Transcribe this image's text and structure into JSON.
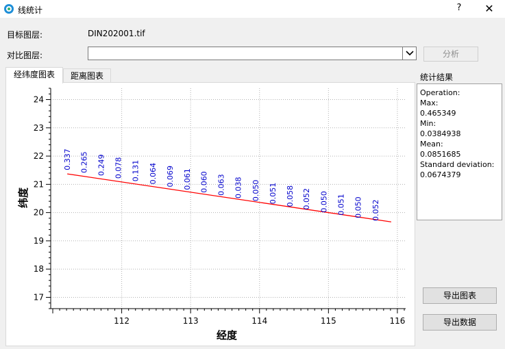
{
  "window": {
    "title": "线统计",
    "help": "?",
    "close": "✕"
  },
  "form": {
    "target_label": "目标图层:",
    "target_value": "DIN202001.tif",
    "compare_label": "对比图层:",
    "compare_value": "",
    "analyze_button": "分析"
  },
  "tabs": [
    {
      "label": "经纬度图表",
      "active": true
    },
    {
      "label": "距离图表",
      "active": false
    }
  ],
  "results": {
    "heading": "统计结果",
    "lines": [
      "Operation:",
      "Max:",
      "0.465349",
      "Min:",
      "0.0384938",
      "Mean:",
      "0.0851685",
      "Standard deviation:",
      "0.0674379"
    ]
  },
  "buttons": {
    "export_chart": "导出图表",
    "export_data": "导出数据"
  },
  "colors": {
    "line": "#ff0000",
    "label": "#0000cc",
    "grid": "#b0b0b0"
  },
  "chart_data": {
    "type": "line",
    "xlabel": "经度",
    "ylabel": "纬度",
    "xlim": [
      110.97,
      116.12
    ],
    "ylim": [
      16.6,
      24.4
    ],
    "xticks": [
      112,
      113,
      114,
      115,
      116
    ],
    "yticks": [
      17,
      18,
      19,
      20,
      21,
      22,
      23,
      24
    ],
    "grid": true,
    "series": [
      {
        "x": [
          111.21,
          115.91
        ],
        "y": [
          21.37,
          19.67
        ]
      }
    ],
    "annotations": [
      {
        "x": 111.25,
        "y": 21.5,
        "text": "0.337"
      },
      {
        "x": 111.49,
        "y": 21.4,
        "text": "0.265"
      },
      {
        "x": 111.74,
        "y": 21.3,
        "text": "0.249"
      },
      {
        "x": 111.99,
        "y": 21.2,
        "text": "0.078"
      },
      {
        "x": 112.24,
        "y": 21.1,
        "text": "0.131"
      },
      {
        "x": 112.49,
        "y": 21.0,
        "text": "0.064"
      },
      {
        "x": 112.74,
        "y": 20.9,
        "text": "0.069"
      },
      {
        "x": 112.99,
        "y": 20.8,
        "text": "0.061"
      },
      {
        "x": 113.23,
        "y": 20.7,
        "text": "0.060"
      },
      {
        "x": 113.48,
        "y": 20.6,
        "text": "0.063"
      },
      {
        "x": 113.73,
        "y": 20.5,
        "text": "0.038"
      },
      {
        "x": 113.98,
        "y": 20.4,
        "text": "0.050"
      },
      {
        "x": 114.23,
        "y": 20.3,
        "text": "0.051"
      },
      {
        "x": 114.48,
        "y": 20.2,
        "text": "0.058"
      },
      {
        "x": 114.72,
        "y": 20.1,
        "text": "0.052"
      },
      {
        "x": 114.97,
        "y": 20.0,
        "text": "0.050"
      },
      {
        "x": 115.22,
        "y": 19.9,
        "text": "0.051"
      },
      {
        "x": 115.47,
        "y": 19.8,
        "text": "0.050"
      },
      {
        "x": 115.72,
        "y": 19.7,
        "text": "0.052"
      }
    ]
  }
}
